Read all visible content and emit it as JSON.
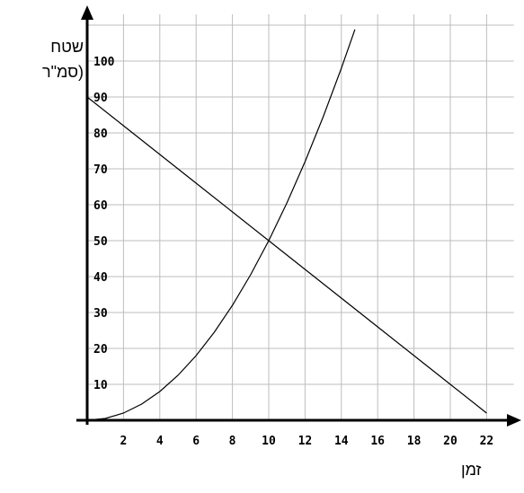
{
  "chart_data": {
    "type": "line",
    "ylabel_lines": [
      "שטח",
      "(סמ\"ר"
    ],
    "xlabel": "זמן",
    "xlim": [
      0,
      23.5
    ],
    "ylim": [
      0,
      113
    ],
    "x_ticks": [
      2,
      4,
      6,
      8,
      10,
      12,
      14,
      16,
      18,
      20,
      22
    ],
    "y_ticks": [
      10,
      20,
      30,
      40,
      50,
      60,
      70,
      80,
      90,
      100
    ],
    "grid": true,
    "grid_step_x": 2,
    "grid_step_y": 10,
    "series": [
      {
        "style": "straight line",
        "color": "#000000",
        "x": [
          0,
          2,
          4,
          6,
          8,
          10,
          12,
          14,
          16,
          18,
          20,
          22
        ],
        "y": [
          90,
          82,
          74,
          66,
          58,
          50,
          42,
          34,
          26,
          18,
          10,
          2
        ]
      },
      {
        "style": "curve",
        "color": "#000000",
        "x": [
          0,
          1,
          2,
          3,
          4,
          5,
          6,
          7,
          8,
          9,
          10,
          11,
          12,
          13,
          14,
          14.75
        ],
        "y": [
          0,
          0.5,
          2,
          4.5,
          8,
          12.5,
          18,
          24.5,
          32,
          40.5,
          50,
          60.5,
          72,
          84.5,
          98,
          108.8
        ]
      }
    ]
  }
}
